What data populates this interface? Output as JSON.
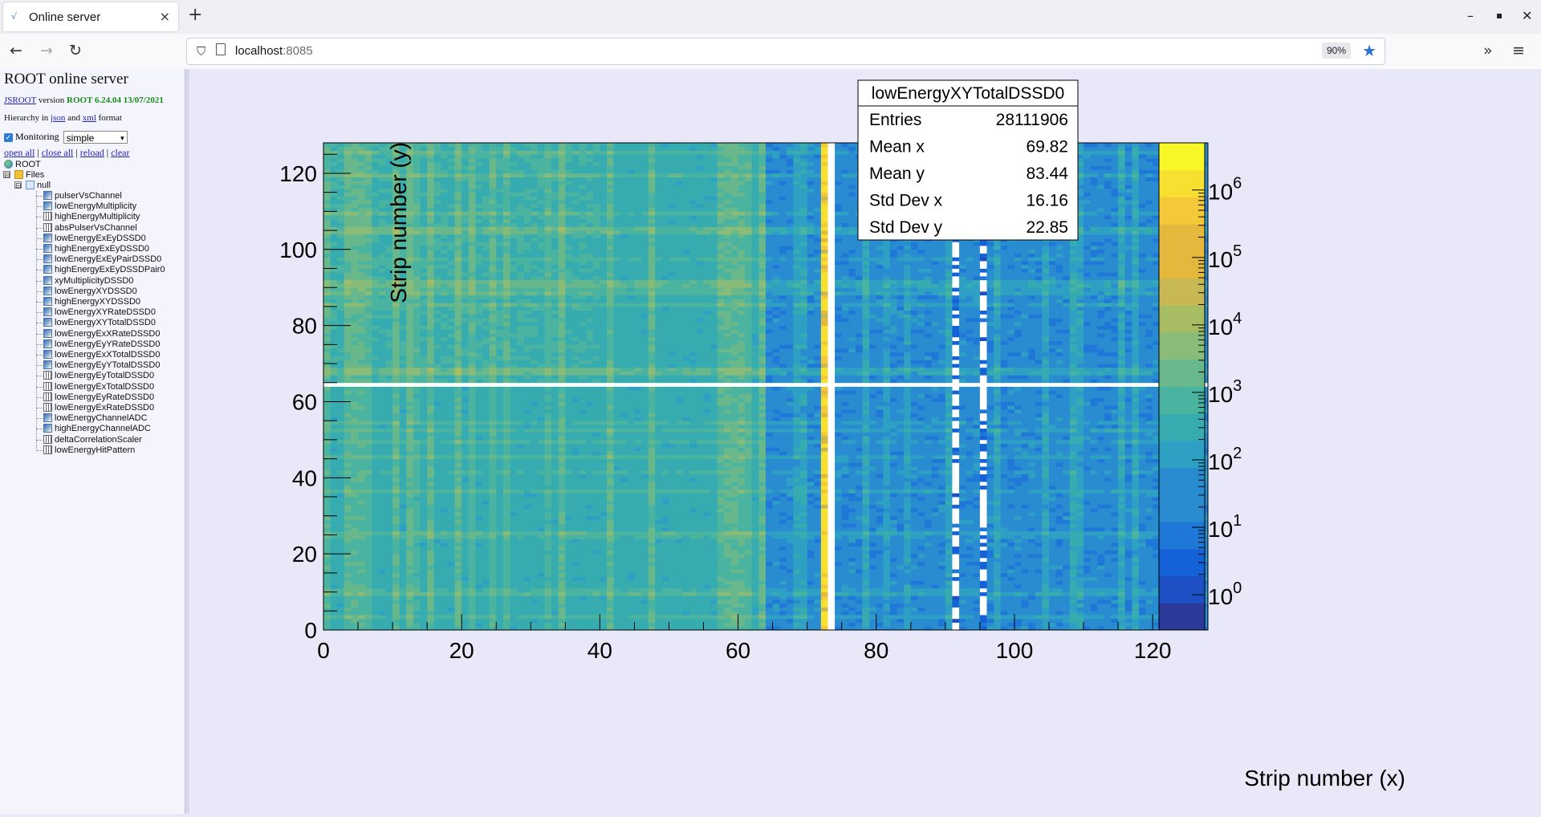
{
  "browser": {
    "tab_title": "Online server",
    "tab_close": "×",
    "new_tab": "+",
    "url_host": "localhost",
    "url_port": ":8085",
    "zoom": "90%"
  },
  "panel": {
    "title": "ROOT online server",
    "version_link": "JSROOT",
    "version_text": " version ",
    "version_value": "ROOT 6.24.04 13/07/2021",
    "hierarchy_prefix": "Hierarchy in ",
    "hierarchy_json": "json",
    "hierarchy_and": " and ",
    "hierarchy_xml": "xml",
    "hierarchy_suffix": " format",
    "monitoring_label": "Monitoring",
    "monitoring_select": "simple",
    "links": [
      "open all",
      "close all",
      "reload",
      "clear"
    ],
    "tree_root": "ROOT",
    "tree_files": "Files",
    "tree_null": "null",
    "tree_items": [
      {
        "label": "pulserVsChannel",
        "icon": "h2"
      },
      {
        "label": "lowEnergyMultiplicity",
        "icon": "h2"
      },
      {
        "label": "highEnergyMultiplicity",
        "icon": "h1"
      },
      {
        "label": "absPulserVsChannel",
        "icon": "h1"
      },
      {
        "label": "lowEnergyExEyDSSD0",
        "icon": "h2"
      },
      {
        "label": "highEnergyExEyDSSD0",
        "icon": "h2"
      },
      {
        "label": "lowEnergyExEyPairDSSD0",
        "icon": "h2"
      },
      {
        "label": "highEnergyExEyDSSDPair0",
        "icon": "h2"
      },
      {
        "label": "xyMultiplicityDSSD0",
        "icon": "h2"
      },
      {
        "label": "lowEnergyXYDSSD0",
        "icon": "h2"
      },
      {
        "label": "highEnergyXYDSSD0",
        "icon": "h2"
      },
      {
        "label": "lowEnergyXYRateDSSD0",
        "icon": "h2"
      },
      {
        "label": "lowEnergyXYTotalDSSD0",
        "icon": "h2"
      },
      {
        "label": "lowEnergyExXRateDSSD0",
        "icon": "h2"
      },
      {
        "label": "lowEnergyEyYRateDSSD0",
        "icon": "h2"
      },
      {
        "label": "lowEnergyExXTotalDSSD0",
        "icon": "h2"
      },
      {
        "label": "lowEnergyEyYTotalDSSD0",
        "icon": "h2"
      },
      {
        "label": "lowEnergyEyTotalDSSD0",
        "icon": "h1"
      },
      {
        "label": "lowEnergyExTotalDSSD0",
        "icon": "h1"
      },
      {
        "label": "lowEnergyEyRateDSSD0",
        "icon": "h1"
      },
      {
        "label": "lowEnergyExRateDSSD0",
        "icon": "h1"
      },
      {
        "label": "lowEnergyChannelADC",
        "icon": "h2"
      },
      {
        "label": "highEnergyChannelADC",
        "icon": "h2"
      },
      {
        "label": "deltaCorrelationScaler",
        "icon": "h1"
      },
      {
        "label": "lowEnergyHitPattern",
        "icon": "h1"
      }
    ]
  },
  "stats": {
    "title": "lowEnergyXYTotalDSSD0",
    "rows": [
      {
        "label": "Entries",
        "value": "28111906"
      },
      {
        "label": "Mean x",
        "value": "69.82"
      },
      {
        "label": "Mean y",
        "value": "83.44"
      },
      {
        "label": "Std Dev x",
        "value": "16.16"
      },
      {
        "label": "Std Dev y",
        "value": "22.85"
      }
    ]
  },
  "chart_data": {
    "type": "heatmap",
    "xlabel": "Strip number (x)",
    "ylabel": "Strip number (y)",
    "xlim": [
      0,
      128
    ],
    "ylim": [
      0,
      128
    ],
    "xticks": [
      0,
      20,
      40,
      60,
      80,
      100,
      120
    ],
    "yticks": [
      0,
      20,
      40,
      60,
      80,
      100,
      120
    ],
    "zscale": "log",
    "zlim": [
      0.3,
      5000000
    ],
    "zticks": [
      {
        "base": "10",
        "exp": "0",
        "value": 1
      },
      {
        "base": "10",
        "exp": "1",
        "value": 10
      },
      {
        "base": "10",
        "exp": "2",
        "value": 100
      },
      {
        "base": "10",
        "exp": "3",
        "value": 1000
      },
      {
        "base": "10",
        "exp": "4",
        "value": 10000
      },
      {
        "base": "10",
        "exp": "5",
        "value": 100000
      },
      {
        "base": "10",
        "exp": "6",
        "value": 1000000
      }
    ],
    "empty_columns": [
      73,
      91,
      95,
      126
    ],
    "empty_rows": [
      64
    ],
    "hot_columns": [
      72
    ],
    "low_region_x": [
      64,
      128
    ],
    "palette": [
      "#2b3a9a",
      "#1f4fc4",
      "#1562d8",
      "#1f78d8",
      "#2a8cd0",
      "#2ea0c4",
      "#36acb0",
      "#4ab4a0",
      "#68b88c",
      "#88bc78",
      "#a8bc64",
      "#c8b854",
      "#e4b83c",
      "#f4c838",
      "#f8e030",
      "#f8f828"
    ]
  }
}
